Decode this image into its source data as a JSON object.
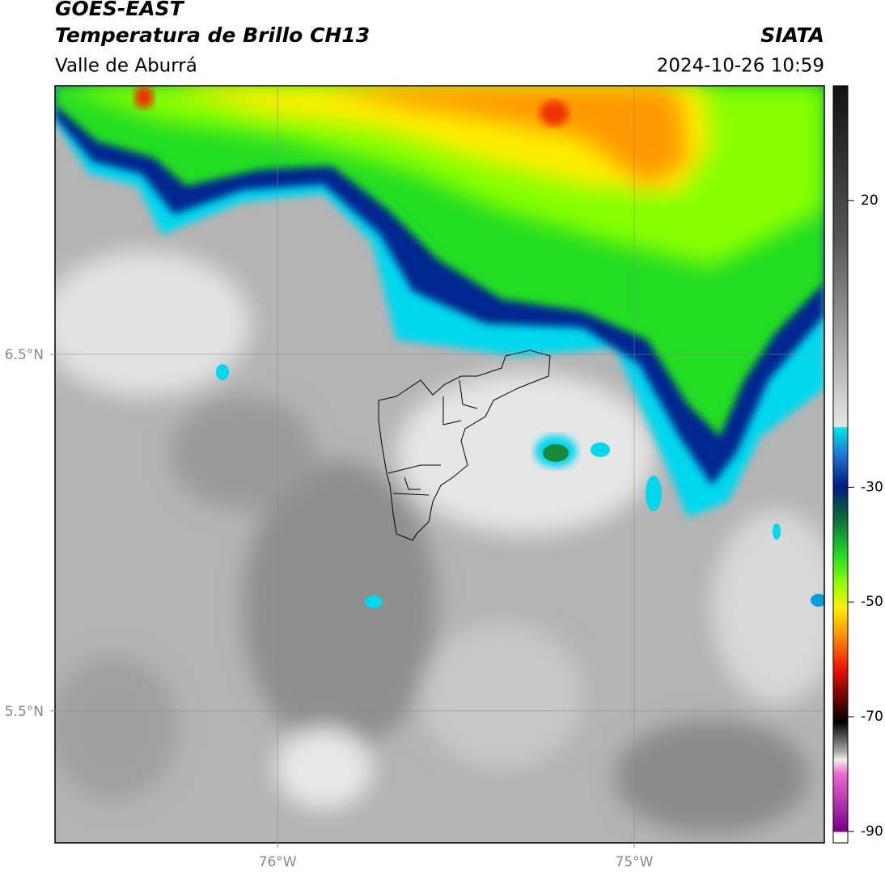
{
  "header": {
    "title": "GOES-EAST",
    "subtitle": "Temperatura de Brillo CH13",
    "region": "Valle de Aburrá",
    "source": "SIATA",
    "datetime": "2024-10-26 10:59"
  },
  "map": {
    "xlim": [
      -76.624,
      -74.467
    ],
    "ylim": [
      5.13,
      7.253
    ],
    "xticks": [
      {
        "value": -76,
        "label": "76°W"
      },
      {
        "value": -75,
        "label": "75°W"
      }
    ],
    "yticks": [
      {
        "value": 6.5,
        "label": "6.5°N"
      },
      {
        "value": 5.5,
        "label": "5.5°N"
      }
    ],
    "grid": true
  },
  "colorbar": {
    "lim": [
      -92,
      40
    ],
    "ticks": [
      20,
      -30,
      -50,
      -70,
      -90
    ]
  }
}
